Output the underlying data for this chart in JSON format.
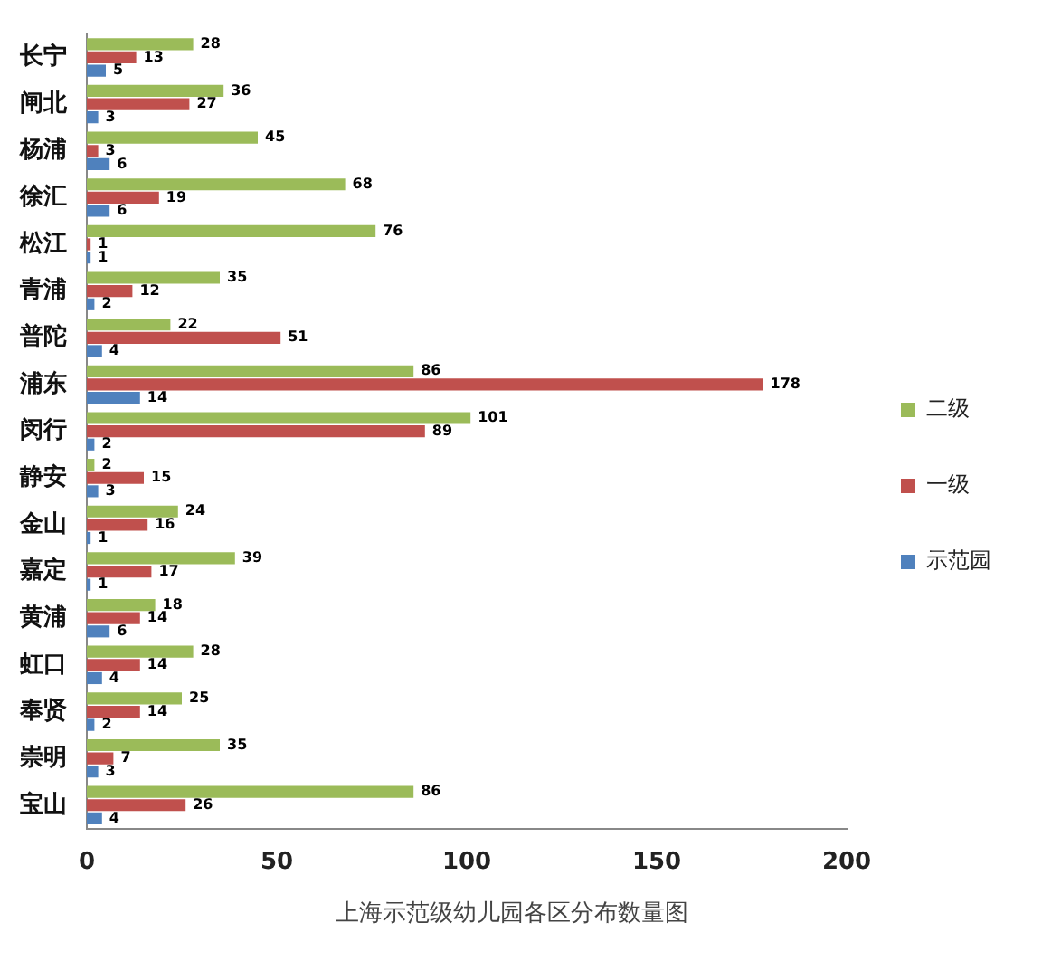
{
  "chart_data": {
    "type": "bar",
    "orientation": "horizontal",
    "title": "上海示范级幼儿园各区分布数量图",
    "categories": [
      "长宁",
      "闸北",
      "杨浦",
      "徐汇",
      "松江",
      "青浦",
      "普陀",
      "浦东",
      "闵行",
      "静安",
      "金山",
      "嘉定",
      "黄浦",
      "虹口",
      "奉贤",
      "崇明",
      "宝山"
    ],
    "series": [
      {
        "name": "二级",
        "color": "#9bbb59",
        "values": [
          28,
          36,
          45,
          68,
          76,
          35,
          22,
          86,
          101,
          2,
          24,
          39,
          18,
          28,
          25,
          35,
          86
        ]
      },
      {
        "name": "一级",
        "color": "#c0504d",
        "values": [
          13,
          27,
          3,
          19,
          1,
          12,
          51,
          178,
          89,
          15,
          16,
          17,
          14,
          14,
          14,
          7,
          26
        ]
      },
      {
        "name": "示范园",
        "color": "#4f81bd",
        "values": [
          5,
          3,
          6,
          6,
          1,
          2,
          4,
          14,
          2,
          3,
          1,
          1,
          6,
          4,
          2,
          3,
          4
        ]
      }
    ],
    "xlim": [
      0,
      200
    ],
    "xticks": [
      0,
      50,
      100,
      150,
      200
    ],
    "grid": false,
    "legend": "right",
    "data_labels": true
  }
}
